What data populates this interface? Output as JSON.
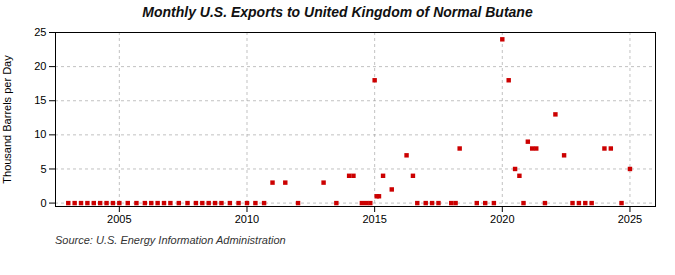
{
  "chart_data": {
    "type": "scatter",
    "title": "Monthly U.S. Exports to United Kingdom of Normal Butane",
    "ylabel": "Thousand Barrels per Day",
    "source": "Source: U.S. Energy Information Administration",
    "color": "#cc0000",
    "marker": "square",
    "grid": true,
    "xlim": [
      2002.5,
      2026.0
    ],
    "ylim": [
      -0.5,
      25
    ],
    "xticks": [
      2005,
      2010,
      2015,
      2020,
      2025
    ],
    "yticks": [
      0,
      5,
      10,
      15,
      20,
      25
    ],
    "x": [
      2003.0,
      2003.25,
      2003.5,
      2003.75,
      2004.0,
      2004.25,
      2004.5,
      2004.75,
      2005.0,
      2005.33,
      2005.67,
      2006.0,
      2006.25,
      2006.5,
      2006.75,
      2007.0,
      2007.33,
      2007.67,
      2008.0,
      2008.25,
      2008.5,
      2008.75,
      2009.0,
      2009.33,
      2009.67,
      2010.0,
      2010.33,
      2010.67,
      2011.0,
      2011.5,
      2012.0,
      2013.0,
      2013.5,
      2014.0,
      2014.17,
      2014.5,
      2014.67,
      2014.83,
      2015.0,
      2015.08,
      2015.17,
      2015.33,
      2015.67,
      2016.25,
      2016.5,
      2016.67,
      2017.0,
      2017.25,
      2017.5,
      2018.0,
      2018.17,
      2018.33,
      2019.0,
      2019.33,
      2019.67,
      2020.0,
      2020.25,
      2020.5,
      2020.67,
      2020.83,
      2021.0,
      2021.17,
      2021.33,
      2021.67,
      2022.08,
      2022.42,
      2022.75,
      2023.0,
      2023.25,
      2023.5,
      2024.0,
      2024.25,
      2024.67,
      2025.0
    ],
    "values": [
      0,
      0,
      0,
      0,
      0,
      0,
      0,
      0,
      0,
      0,
      0,
      0,
      0,
      0,
      0,
      0,
      0,
      0,
      0,
      0,
      0,
      0,
      0,
      0,
      0,
      0,
      0,
      0,
      3.0,
      3.0,
      0,
      3.0,
      0,
      4.0,
      4.0,
      0,
      0,
      0,
      18.0,
      1.0,
      1.0,
      4.0,
      2.0,
      7.0,
      4.0,
      0,
      0,
      0,
      0,
      0,
      0,
      8.0,
      0,
      0,
      0,
      24.0,
      18.0,
      5.0,
      4.0,
      0,
      9.0,
      8.0,
      8.0,
      0,
      13.0,
      7.0,
      0,
      0,
      0,
      0,
      8.0,
      8.0,
      0,
      5.0
    ]
  }
}
